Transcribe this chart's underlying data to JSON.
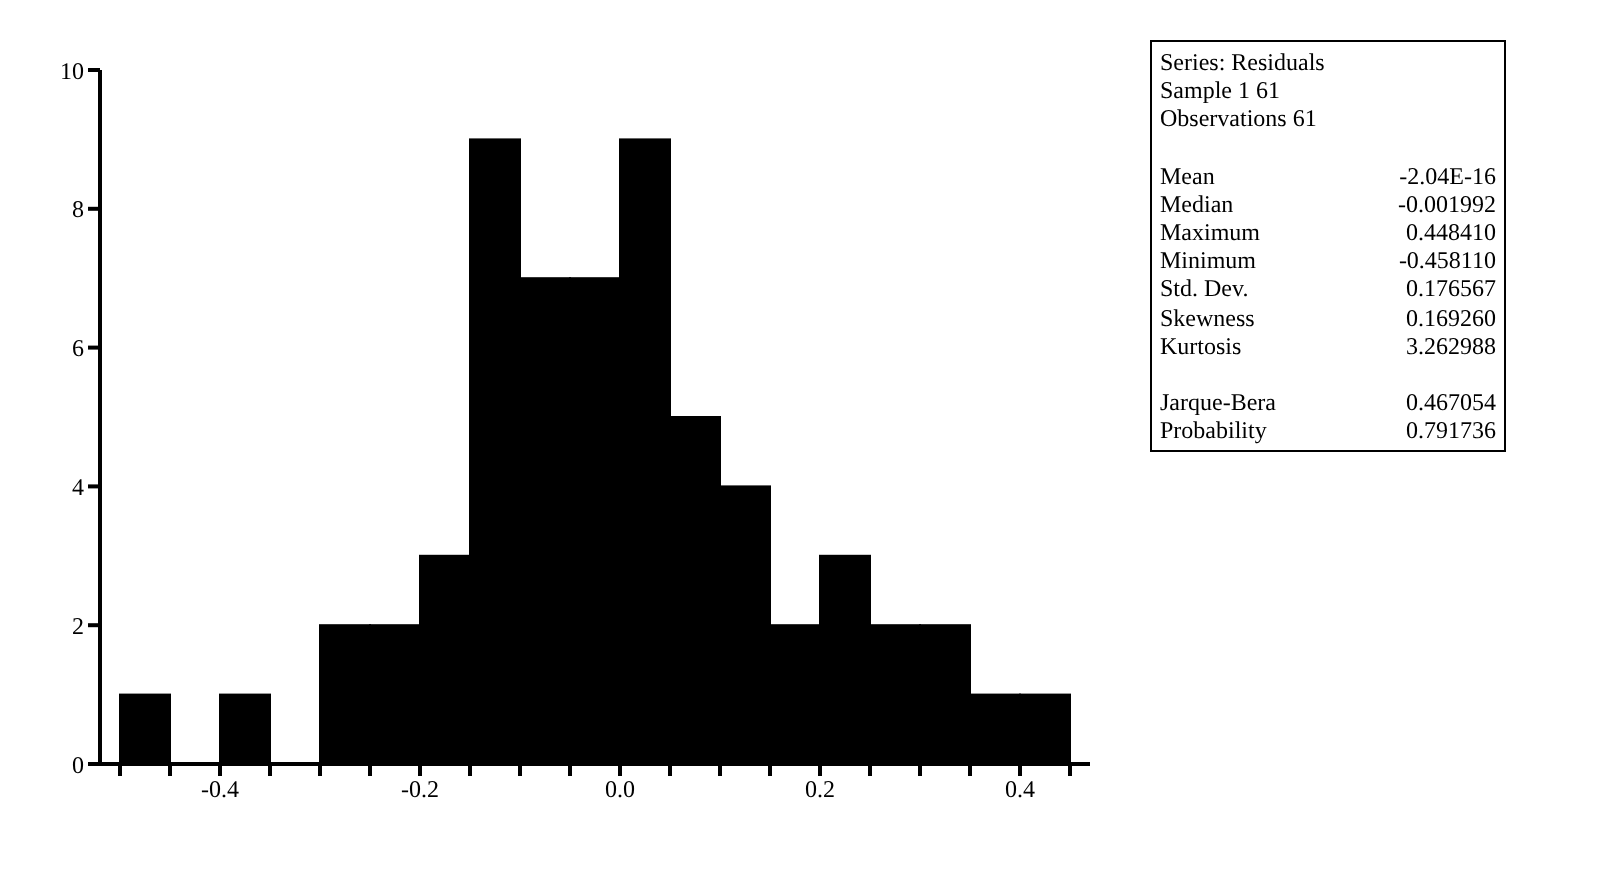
{
  "chart_data": {
    "type": "histogram",
    "bins": [
      -0.5,
      -0.45,
      -0.4,
      -0.35,
      -0.3,
      -0.25,
      -0.2,
      -0.15,
      -0.1,
      -0.05,
      0,
      0.05,
      0.1,
      0.15,
      0.2,
      0.25,
      0.3,
      0.35,
      0.4,
      0.45
    ],
    "values": [
      1,
      0,
      1,
      0,
      2,
      2,
      3,
      9,
      7,
      7,
      9,
      5,
      4,
      2,
      3,
      2,
      2,
      1,
      1
    ],
    "color": "#000000",
    "xlim": [
      -0.52,
      0.47
    ],
    "xticks": [
      {
        "value": -0.5,
        "label": null
      },
      {
        "value": -0.45,
        "label": null
      },
      -0.4,
      {
        "value": -0.35,
        "label": null
      },
      {
        "value": -0.3,
        "label": null
      },
      {
        "value": -0.25,
        "label": null
      },
      -0.2,
      {
        "value": -0.15,
        "label": null
      },
      {
        "value": -0.1,
        "label": null
      },
      {
        "value": -0.05,
        "label": null
      },
      {
        "value": 0,
        "label": "0.0"
      },
      {
        "value": 0.05,
        "label": null
      },
      {
        "value": 0.1,
        "label": null
      },
      {
        "value": 0.15,
        "label": null
      },
      0.2,
      {
        "value": 0.25,
        "label": null
      },
      {
        "value": 0.3,
        "label": null
      },
      {
        "value": 0.35,
        "label": null
      },
      0.4,
      {
        "value": 0.45,
        "label": null
      }
    ],
    "ylim": [
      0,
      10
    ],
    "yticks": [
      0,
      2,
      4,
      6,
      8,
      10
    ],
    "grid": false,
    "annotations": [
      "Series: Residuals",
      "Sample 1 61",
      "Observations 61",
      "Mean -2.04E-16",
      "Median -0.001992",
      "Maximum 0.448410",
      "Minimum -0.458110",
      "Std. Dev. 0.176567",
      "Skewness 0.169260",
      "Kurtosis 3.262988",
      "Jarque-Bera 0.467054",
      "Probability 0.791736"
    ]
  }
}
